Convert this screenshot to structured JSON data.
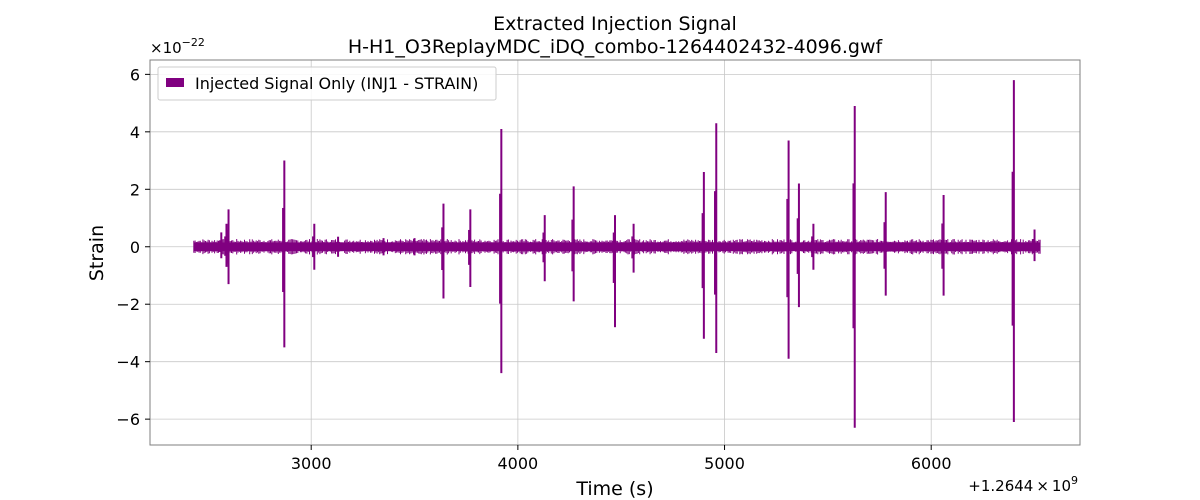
{
  "chart_data": {
    "type": "line",
    "title": "Extracted Injection Signal",
    "subtitle": "H-H1_O3ReplayMDC_iDQ_combo-1264402432-4096.gwf",
    "xlabel": "Time (s)",
    "ylabel": "Strain",
    "x_offset_label_prefix": "+1.2644",
    "x_offset_label_mult": "×",
    "x_offset_label_base": "10",
    "x_offset_label_exp": "9",
    "y_scale_prefix": "×10",
    "y_scale_exp": "−22",
    "xlim": [
      2220,
      6720
    ],
    "ylim": [
      -6.9,
      6.5
    ],
    "grid": true,
    "legend_position": "top-left",
    "x_ticks": [
      {
        "value": 3000,
        "label": "3000"
      },
      {
        "value": 4000,
        "label": "4000"
      },
      {
        "value": 5000,
        "label": "5000"
      },
      {
        "value": 6000,
        "label": "6000"
      }
    ],
    "y_ticks": [
      {
        "value": -6,
        "label": "−6"
      },
      {
        "value": -4,
        "label": "−4"
      },
      {
        "value": -2,
        "label": "−2"
      },
      {
        "value": 0,
        "label": "0"
      },
      {
        "value": 2,
        "label": "2"
      },
      {
        "value": 4,
        "label": "4"
      },
      {
        "value": 6,
        "label": "6"
      }
    ],
    "series": [
      {
        "name": "Injected Signal Only (INJ1 - STRAIN)",
        "color": "#800080",
        "x_range": [
          2432,
          6528
        ],
        "baseline_band": [
          -0.15,
          0.15
        ],
        "spikes": [
          {
            "t": 2565,
            "max": 0.5,
            "min": -0.4
          },
          {
            "t": 2590,
            "max": 0.8,
            "min": -0.7
          },
          {
            "t": 2600,
            "max": 1.3,
            "min": -1.3
          },
          {
            "t": 2870,
            "max": 3.0,
            "min": -3.5
          },
          {
            "t": 3015,
            "max": 0.8,
            "min": -0.8
          },
          {
            "t": 3130,
            "max": 0.35,
            "min": -0.35
          },
          {
            "t": 3350,
            "max": 0.3,
            "min": -0.3
          },
          {
            "t": 3500,
            "max": 0.3,
            "min": -0.3
          },
          {
            "t": 3640,
            "max": 1.5,
            "min": -1.8
          },
          {
            "t": 3770,
            "max": 1.3,
            "min": -1.4
          },
          {
            "t": 3920,
            "max": 4.1,
            "min": -4.4
          },
          {
            "t": 4130,
            "max": 1.1,
            "min": -1.2
          },
          {
            "t": 4270,
            "max": 2.1,
            "min": -1.9
          },
          {
            "t": 4470,
            "max": 1.1,
            "min": -2.8
          },
          {
            "t": 4560,
            "max": 0.8,
            "min": -0.9
          },
          {
            "t": 4900,
            "max": 2.6,
            "min": -3.2
          },
          {
            "t": 4960,
            "max": 4.3,
            "min": -3.7
          },
          {
            "t": 5310,
            "max": 3.7,
            "min": -3.9
          },
          {
            "t": 5360,
            "max": 2.2,
            "min": -2.1
          },
          {
            "t": 5430,
            "max": 0.8,
            "min": -0.8
          },
          {
            "t": 5630,
            "max": 4.9,
            "min": -6.3
          },
          {
            "t": 5780,
            "max": 1.9,
            "min": -1.7
          },
          {
            "t": 6060,
            "max": 1.8,
            "min": -1.7
          },
          {
            "t": 6400,
            "max": 5.8,
            "min": -6.1
          },
          {
            "t": 6500,
            "max": 0.6,
            "min": -0.5
          }
        ]
      }
    ]
  }
}
